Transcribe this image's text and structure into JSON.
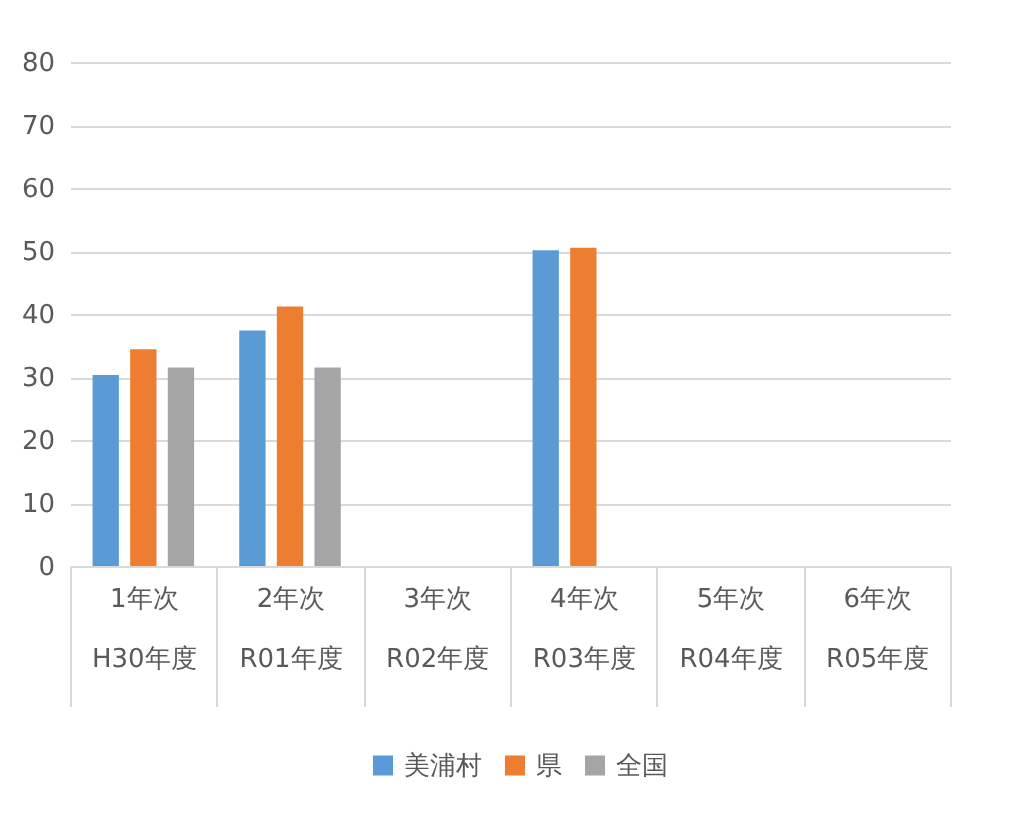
{
  "chart_data": {
    "type": "bar",
    "categories": [
      "1年次\nH30年度",
      "2年次\nR01年度",
      "3年次\nR02年度",
      "4年次\nR03年度",
      "5年次\nR04年度",
      "6年次\nR05年度"
    ],
    "series": [
      {
        "name": "美浦村",
        "color": "#5b9bd5",
        "values": [
          30.3,
          37.4,
          null,
          50.1,
          null,
          null
        ]
      },
      {
        "name": "県",
        "color": "#ed7d31",
        "values": [
          34.4,
          41.2,
          null,
          50.5,
          null,
          null
        ]
      },
      {
        "name": "全国",
        "color": "#a5a5a5",
        "values": [
          31.5,
          31.5,
          null,
          null,
          null,
          null
        ]
      }
    ],
    "ylim": [
      0,
      80
    ],
    "yticks": [
      0,
      10,
      20,
      30,
      40,
      50,
      60,
      70,
      80
    ],
    "grid": "y",
    "legend": "bottom"
  }
}
